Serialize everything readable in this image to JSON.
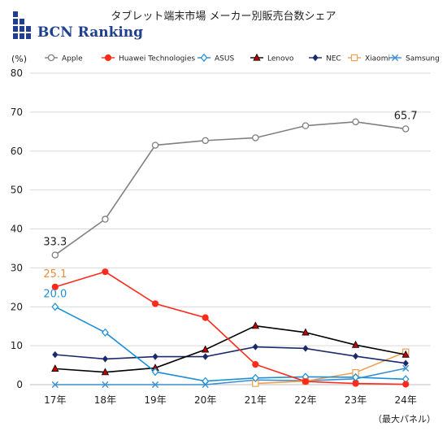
{
  "logo": {
    "text": "BCN Ranking"
  },
  "chart_data": {
    "type": "line",
    "title": "タブレット端末市場 メーカー別販売台数シェア",
    "y_unit": "(%)",
    "note": "（最大パネル）",
    "categories": [
      "17年",
      "18年",
      "19年",
      "20年",
      "21年",
      "22年",
      "23年",
      "24年"
    ],
    "ylim": [
      0,
      80
    ],
    "yticks": [
      0,
      10,
      20,
      30,
      40,
      50,
      60,
      70,
      80
    ],
    "grid": true,
    "legend_position": "top",
    "series": [
      {
        "name": "Apple",
        "color": "#808080",
        "marker": "circle-open",
        "values": [
          33.3,
          42.5,
          61.5,
          62.7,
          63.4,
          66.5,
          67.5,
          65.7
        ]
      },
      {
        "name": "Huawei Technologies",
        "color": "#ff2a1a",
        "marker": "circle",
        "values": [
          25.1,
          29.0,
          20.8,
          17.2,
          5.2,
          0.8,
          0.3,
          0.1
        ]
      },
      {
        "name": "ASUS",
        "color": "#1f8fd6",
        "marker": "diamond-open",
        "values": [
          20.0,
          13.4,
          3.3,
          0.9,
          1.7,
          2.0,
          1.9,
          1.4
        ]
      },
      {
        "name": "Lenovo",
        "color": "#000000",
        "marker": "triangle",
        "values": [
          4.1,
          3.2,
          4.3,
          9.0,
          15.1,
          13.4,
          10.2,
          7.7
        ]
      },
      {
        "name": "NEC",
        "color": "#1a2a6c",
        "marker": "diamond",
        "values": [
          7.7,
          6.6,
          7.2,
          7.2,
          9.7,
          9.3,
          7.3,
          5.5
        ]
      },
      {
        "name": "Xiaomi",
        "color": "#f0a050",
        "marker": "square-open",
        "values": [
          null,
          null,
          null,
          null,
          0.3,
          0.9,
          3.1,
          8.4
        ]
      },
      {
        "name": "Samsung",
        "color": "#3a8fd0",
        "marker": "x",
        "values": [
          0.0,
          0.0,
          0.0,
          0.0,
          1.2,
          1.0,
          1.5,
          4.2
        ]
      }
    ],
    "annotations": [
      {
        "series": "Apple",
        "index": 0,
        "text": "33.3",
        "color": "#222222"
      },
      {
        "series": "Apple",
        "index": 7,
        "text": "65.7",
        "color": "#222222"
      },
      {
        "series": "Huawei Technologies",
        "index": 0,
        "text": "25.1",
        "color": "#f08a3a"
      },
      {
        "series": "ASUS",
        "index": 0,
        "text": "20.0",
        "color": "#1f8fd6"
      }
    ]
  }
}
